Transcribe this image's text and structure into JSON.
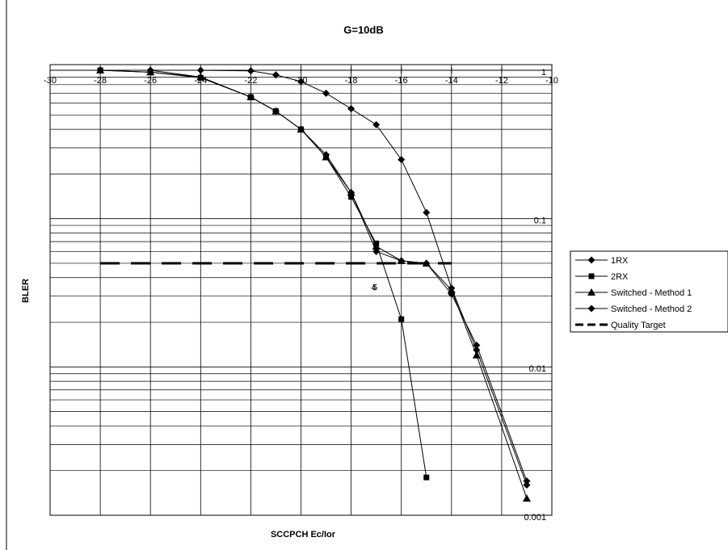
{
  "chart_data": {
    "type": "line",
    "title": "G=10dB",
    "x_label": "SCCPCH Ec/Ior",
    "y_label": "BLER",
    "y_scale": "log",
    "grid": true,
    "minor_grid": true,
    "legend": "right",
    "xlim": [
      -30,
      -10
    ],
    "xticks": [
      -30,
      -28,
      -26,
      -24,
      -22,
      -20,
      -18,
      -16,
      -14,
      -12,
      -10
    ],
    "ylim": [
      0.001,
      1
    ],
    "yticks": [
      1,
      0.1,
      0.01,
      0.001
    ],
    "series": [
      {
        "name": "1RX",
        "color": "#000000",
        "marker": "diamond",
        "x": [
          -28,
          -26,
          -24,
          -22,
          -21,
          -20,
          -19,
          -18,
          -17,
          -16,
          -15,
          -14,
          -13,
          -11
        ],
        "values": [
          1,
          1,
          1,
          0.99,
          0.93,
          0.84,
          0.7,
          0.55,
          0.43,
          0.25,
          0.11,
          0.034,
          0.013,
          0.0016
        ]
      },
      {
        "name": "2RX",
        "color": "#000000",
        "marker": "square",
        "x": [
          -28,
          -26,
          -24,
          -22,
          -21,
          -20,
          -19,
          -18,
          -17,
          -16,
          -15
        ],
        "values": [
          1,
          0.97,
          0.89,
          0.66,
          0.53,
          0.4,
          0.26,
          0.14,
          0.068,
          0.021,
          0.0018
        ]
      },
      {
        "name": "Switched - Method 1",
        "color": "#000000",
        "marker": "triangle",
        "x": [
          -28,
          -26,
          -24,
          -22,
          -21,
          -20,
          -19,
          -18,
          -17,
          -16,
          -15,
          -14,
          -13,
          -11
        ],
        "values": [
          1,
          0.97,
          0.9,
          0.66,
          0.53,
          0.4,
          0.26,
          0.15,
          0.065,
          0.052,
          0.05,
          0.033,
          0.012,
          0.0013
        ]
      },
      {
        "name": "Switched - Method 2",
        "color": "#000000",
        "marker": "diamond",
        "x": [
          -28,
          -26,
          -24,
          -22,
          -21,
          -20,
          -19,
          -18,
          -17,
          -16,
          -15,
          -14,
          -13,
          -11
        ],
        "values": [
          1,
          1,
          0.9,
          0.66,
          0.53,
          0.4,
          0.27,
          0.15,
          0.06,
          0.052,
          0.05,
          0.031,
          0.014,
          0.0017
        ]
      },
      {
        "name": "Quality Target",
        "color": "#000000",
        "line_style": "dashed",
        "x": [
          -28,
          -14
        ],
        "values": [
          0.05,
          0.05
        ]
      }
    ],
    "annotations": [
      {
        "text": "4",
        "x": -17.1,
        "y": 0.034
      },
      {
        "text": "5",
        "x": -17.05,
        "y": 0.034
      }
    ]
  }
}
